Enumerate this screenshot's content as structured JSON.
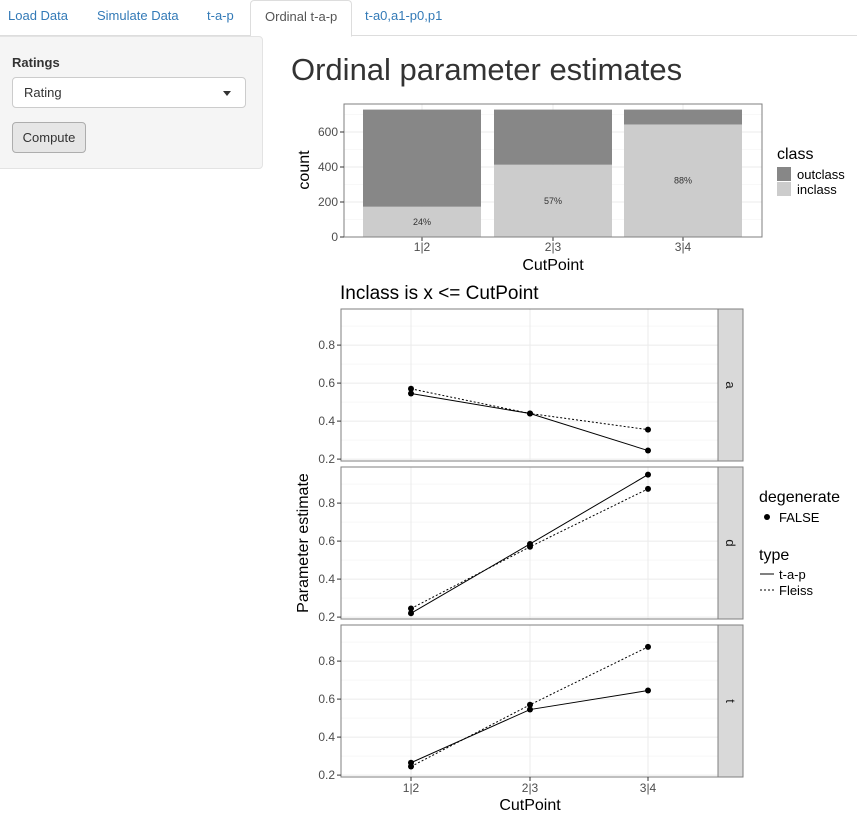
{
  "nav": {
    "tabs": [
      {
        "label": "Load Data"
      },
      {
        "label": "Simulate Data"
      },
      {
        "label": "t-a-p"
      },
      {
        "label": "Ordinal t-a-p",
        "active": true
      },
      {
        "label": "t-a0,a1-p0,p1"
      }
    ]
  },
  "sidebar": {
    "ratings_label": "Ratings",
    "ratings_select_value": "Rating",
    "compute_label": "Compute"
  },
  "main": {
    "title": "Ordinal parameter estimates"
  },
  "colors": {
    "outclass": "#878787",
    "inclass": "#cccccc",
    "line": "#000000",
    "strip": "#d9d9d9",
    "panel_border": "#7f7f7f",
    "grid": "#ebebeb",
    "tab_link": "#337ab7"
  },
  "chart_data": [
    {
      "type": "bar",
      "stacked": true,
      "categories": [
        "1|2",
        "2|3",
        "3|4"
      ],
      "series": [
        {
          "name": "outclass",
          "values": [
            555,
            315,
            85
          ]
        },
        {
          "name": "inclass",
          "values": [
            173,
            413,
            643
          ]
        }
      ],
      "bar_labels": [
        "24%",
        "57%",
        "88%"
      ],
      "xlabel": "CutPoint",
      "ylabel": "count",
      "ylim": [
        0,
        760
      ],
      "yticks": [
        0,
        200,
        400,
        600
      ],
      "legend": {
        "title": "class",
        "position": "right"
      },
      "grid": true
    },
    {
      "type": "line",
      "title": "Inclass is x <= CutPoint",
      "categories": [
        "1|2",
        "2|3",
        "3|4"
      ],
      "xlabel": "CutPoint",
      "ylabel": "Parameter estimate",
      "facets": [
        {
          "label": "a",
          "ylim": [
            0.19,
            0.99
          ],
          "yticks": [
            0.2,
            0.4,
            0.6,
            0.8
          ],
          "series": [
            {
              "name": "t-a-p",
              "values": [
                0.545,
                0.44,
                0.245
              ]
            },
            {
              "name": "Fleiss",
              "values": [
                0.57,
                0.44,
                0.355
              ]
            }
          ]
        },
        {
          "label": "d",
          "ylim": [
            0.19,
            0.99
          ],
          "yticks": [
            0.2,
            0.4,
            0.6,
            0.8
          ],
          "series": [
            {
              "name": "t-a-p",
              "values": [
                0.22,
                0.585,
                0.95
              ]
            },
            {
              "name": "Fleiss",
              "values": [
                0.245,
                0.57,
                0.875
              ]
            }
          ]
        },
        {
          "label": "t",
          "ylim": [
            0.19,
            0.99
          ],
          "yticks": [
            0.2,
            0.4,
            0.6,
            0.8
          ],
          "series": [
            {
              "name": "t-a-p",
              "values": [
                0.265,
                0.545,
                0.645
              ]
            },
            {
              "name": "Fleiss",
              "values": [
                0.245,
                0.57,
                0.875
              ]
            }
          ]
        }
      ],
      "legend": {
        "position": "right",
        "degenerate": {
          "title": "degenerate",
          "entries": [
            "FALSE"
          ]
        },
        "type": {
          "title": "type",
          "entries": [
            "t-a-p",
            "Fleiss"
          ]
        }
      },
      "grid": true
    }
  ]
}
